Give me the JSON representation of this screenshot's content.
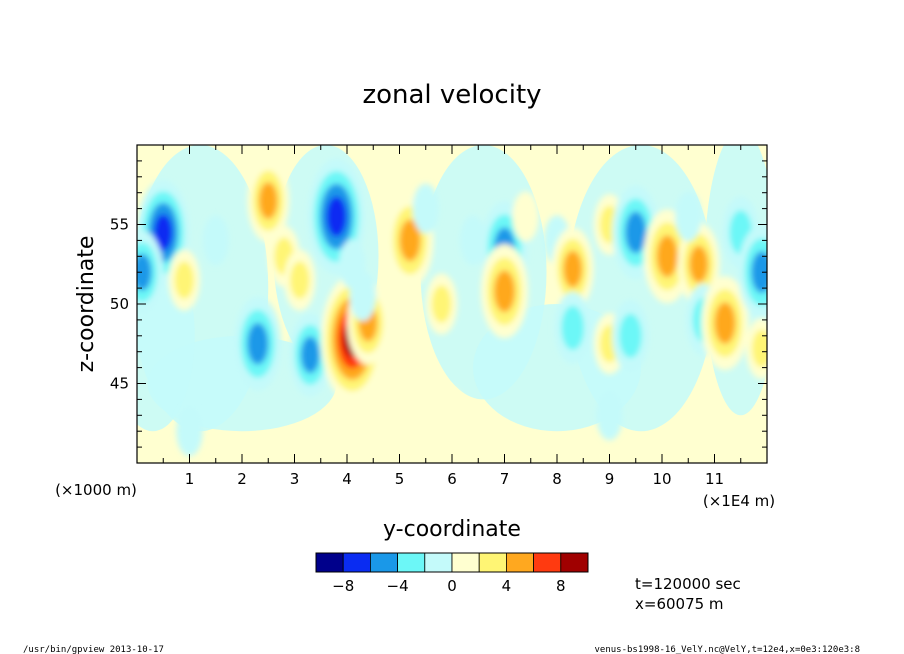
{
  "chart_data": {
    "type": "heatmap",
    "title": "zonal velocity",
    "xlabel": "y-coordinate",
    "ylabel": "z-coordinate",
    "x_multiplier_label": "(×1E4 m)",
    "y_multiplier_label": "(×1000 m)",
    "xlim": [
      0,
      12
    ],
    "ylim": [
      40,
      60
    ],
    "x_ticks": [
      {
        "value": 1,
        "label": "1"
      },
      {
        "value": 2,
        "label": "2"
      },
      {
        "value": 3,
        "label": "3"
      },
      {
        "value": 4,
        "label": "4"
      },
      {
        "value": 5,
        "label": "5"
      },
      {
        "value": 6,
        "label": "6"
      },
      {
        "value": 7,
        "label": "7"
      },
      {
        "value": 8,
        "label": "8"
      },
      {
        "value": 9,
        "label": "9"
      },
      {
        "value": 10,
        "label": "10"
      },
      {
        "value": 11,
        "label": "11"
      }
    ],
    "y_ticks": [
      {
        "value": 45,
        "label": "45"
      },
      {
        "value": 50,
        "label": "50"
      },
      {
        "value": 55,
        "label": "55"
      }
    ],
    "colorbar": {
      "levels": [
        -10,
        -8,
        -6,
        -4,
        -2,
        0,
        2,
        4,
        6,
        8,
        10
      ],
      "colors": [
        "#00008b",
        "#0a2cf2",
        "#1a98e8",
        "#6cf7f7",
        "#c4fafa",
        "#ffffd0",
        "#fff574",
        "#ffa81f",
        "#ff3a10",
        "#a00000"
      ],
      "tick_labels": [
        {
          "value": -8,
          "label": "−8"
        },
        {
          "value": -4,
          "label": "−4"
        },
        {
          "value": 0,
          "label": "0"
        },
        {
          "value": 4,
          "label": "4"
        },
        {
          "value": 8,
          "label": "8"
        }
      ]
    },
    "features": [
      {
        "y": 0.5,
        "z": 54.5,
        "value": -7
      },
      {
        "y": 0.1,
        "z": 52.0,
        "value": -5
      },
      {
        "y": 0.9,
        "z": 51.5,
        "value": 3
      },
      {
        "y": 1.5,
        "z": 54.0,
        "value": -2
      },
      {
        "y": 2.5,
        "z": 56.5,
        "value": 5
      },
      {
        "y": 2.8,
        "z": 53.0,
        "value": 3
      },
      {
        "y": 2.3,
        "z": 47.5,
        "value": -6
      },
      {
        "y": 3.3,
        "z": 46.8,
        "value": -5
      },
      {
        "y": 3.1,
        "z": 51.5,
        "value": 3
      },
      {
        "y": 4.1,
        "z": 47.8,
        "value": 9
      },
      {
        "y": 4.4,
        "z": 48.8,
        "value": 5
      },
      {
        "y": 3.8,
        "z": 55.5,
        "value": -8
      },
      {
        "y": 4.1,
        "z": 52.5,
        "value": -2
      },
      {
        "y": 4.3,
        "z": 50.5,
        "value": -2
      },
      {
        "y": 5.2,
        "z": 54.0,
        "value": 6
      },
      {
        "y": 5.8,
        "z": 50.0,
        "value": 3
      },
      {
        "y": 5.5,
        "z": 56.0,
        "value": -2
      },
      {
        "y": 6.4,
        "z": 54.0,
        "value": -2
      },
      {
        "y": 7.0,
        "z": 53.5,
        "value": -6
      },
      {
        "y": 7.0,
        "z": 50.8,
        "value": 6
      },
      {
        "y": 7.4,
        "z": 55.5,
        "value": 2
      },
      {
        "y": 8.0,
        "z": 54.0,
        "value": -2
      },
      {
        "y": 8.3,
        "z": 52.2,
        "value": 5
      },
      {
        "y": 8.3,
        "z": 48.5,
        "value": -4
      },
      {
        "y": 9.0,
        "z": 55.0,
        "value": 3
      },
      {
        "y": 9.0,
        "z": 47.5,
        "value": 3
      },
      {
        "y": 9.5,
        "z": 54.5,
        "value": -6
      },
      {
        "y": 9.4,
        "z": 48.0,
        "value": -4
      },
      {
        "y": 10.1,
        "z": 53.0,
        "value": 6
      },
      {
        "y": 10.7,
        "z": 52.5,
        "value": 5
      },
      {
        "y": 10.5,
        "z": 55.5,
        "value": -2
      },
      {
        "y": 10.8,
        "z": 49.0,
        "value": -4
      },
      {
        "y": 11.2,
        "z": 48.8,
        "value": 6
      },
      {
        "y": 11.5,
        "z": 54.5,
        "value": -4
      },
      {
        "y": 11.9,
        "z": 52.0,
        "value": -6
      },
      {
        "y": 11.9,
        "z": 47.2,
        "value": 3
      },
      {
        "y": 6.0,
        "z": 43.5,
        "value": 1
      },
      {
        "y": 1.0,
        "z": 42.0,
        "value": -2
      },
      {
        "y": 9.0,
        "z": 43.0,
        "value": -2
      }
    ]
  },
  "annotations": {
    "time": "t=120000 sec",
    "xpos": "x=60075 m"
  },
  "footer": {
    "left": "/usr/bin/gpview  2013-10-17",
    "right": "venus-bs1998-16_VelY.nc@VelY,t=12e4,x=0e3:120e3:8"
  }
}
